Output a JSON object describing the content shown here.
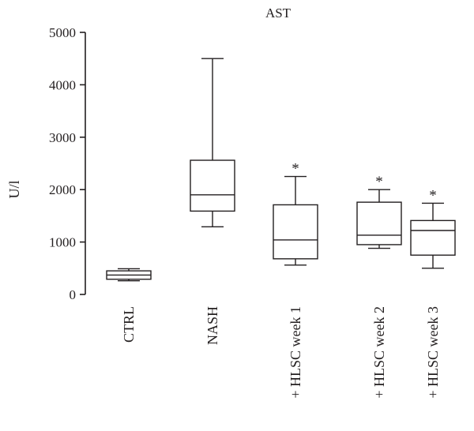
{
  "chart_data": {
    "type": "box",
    "title": "AST",
    "ylabel": "U/l",
    "xlabel": "",
    "ylim": [
      0,
      5000
    ],
    "yticks": [
      0,
      1000,
      2000,
      3000,
      4000,
      5000
    ],
    "grid": false,
    "categories": [
      "CTRL",
      "NASH",
      "+ HLSC week 1",
      "+ HLSC week 2",
      "+ HLSC week 3"
    ],
    "boxes": [
      {
        "min": 260,
        "q1": 290,
        "median": 370,
        "q3": 450,
        "max": 490,
        "annotation": ""
      },
      {
        "min": 1290,
        "q1": 1590,
        "median": 1900,
        "q3": 2560,
        "max": 4500,
        "annotation": ""
      },
      {
        "min": 560,
        "q1": 680,
        "median": 1040,
        "q3": 1710,
        "max": 2250,
        "annotation": "*"
      },
      {
        "min": 880,
        "q1": 950,
        "median": 1130,
        "q3": 1760,
        "max": 2000,
        "annotation": "*"
      },
      {
        "min": 500,
        "q1": 750,
        "median": 1220,
        "q3": 1410,
        "max": 1740,
        "annotation": "*"
      }
    ]
  }
}
